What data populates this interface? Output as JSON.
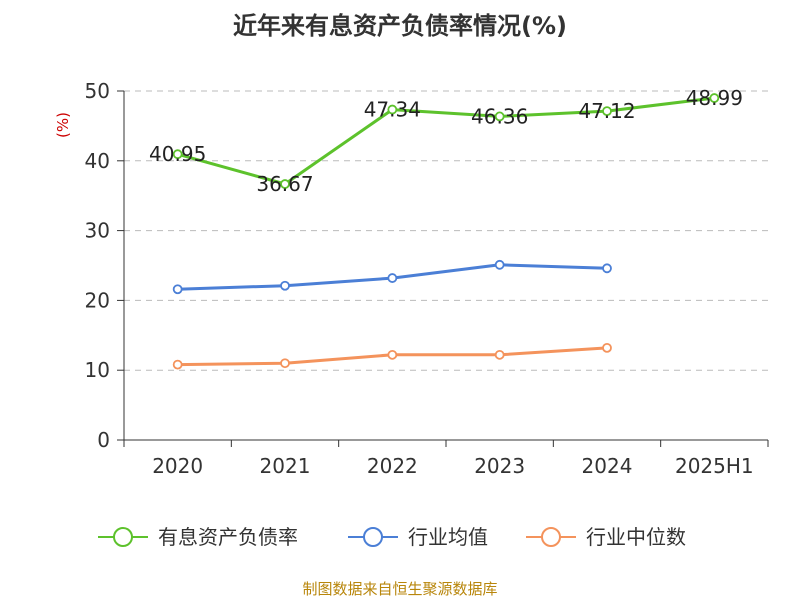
{
  "chart_data": {
    "type": "line",
    "title": "近年来有息资产负债率情况(%)",
    "ylabel": "(%)",
    "xlabel": "",
    "categories": [
      "2020",
      "2021",
      "2022",
      "2023",
      "2024",
      "2025H1"
    ],
    "ylim": [
      0,
      50
    ],
    "yticks": [
      0,
      10,
      20,
      30,
      40,
      50
    ],
    "grid": true,
    "legend_position": "bottom",
    "series": [
      {
        "name": "有息资产负债率",
        "color": "#5dc22c",
        "values": [
          40.95,
          36.67,
          47.34,
          46.36,
          47.12,
          48.99
        ],
        "labels": [
          "40.95",
          "36.67",
          "47.34",
          "46.36",
          "47.12",
          "48.99"
        ]
      },
      {
        "name": "行业均值",
        "color": "#4b7fd6",
        "values": [
          21.6,
          22.1,
          23.2,
          25.1,
          24.6,
          null
        ]
      },
      {
        "name": "行业中位数",
        "color": "#f4935c",
        "values": [
          10.8,
          11.0,
          12.2,
          12.2,
          13.2,
          null
        ]
      }
    ]
  },
  "source": "制图数据来自恒生聚源数据库"
}
